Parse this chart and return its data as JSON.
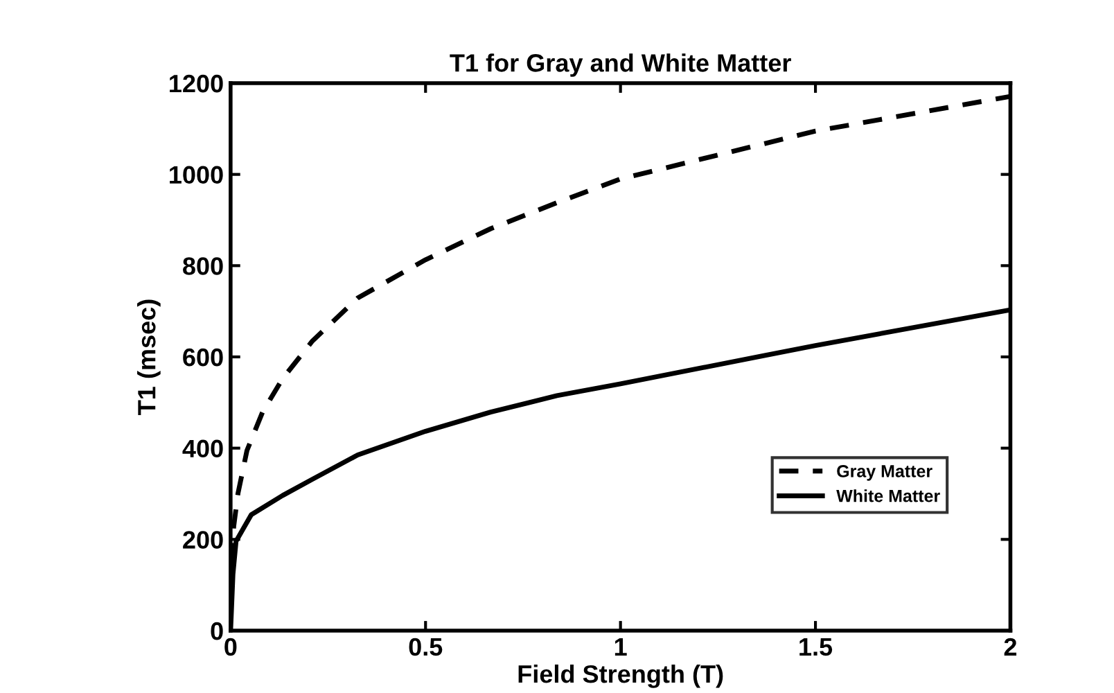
{
  "chart_data": {
    "type": "line",
    "title": "T1 for Gray and White Matter",
    "xlabel": "Field Strength (T)",
    "ylabel": "T1 (msec)",
    "xlim": [
      0,
      2
    ],
    "ylim": [
      0,
      1200
    ],
    "xticks": [
      0,
      0.5,
      1,
      1.5,
      2
    ],
    "yticks": [
      0,
      200,
      400,
      600,
      800,
      1000,
      1200
    ],
    "grid": false,
    "legend": "bottom right",
    "series": [
      {
        "name": "Gray Matter",
        "color": "#000000",
        "line_style": "dashed",
        "x": [
          0.004,
          0.008,
          0.019,
          0.042,
          0.082,
          0.133,
          0.21,
          0.326,
          0.5,
          0.667,
          0.837,
          1.0,
          1.5,
          2.0
        ],
        "values": [
          150,
          228,
          301,
          395,
          479,
          552,
          635,
          729,
          813,
          881,
          938,
          990,
          1095,
          1171
        ]
      },
      {
        "name": "White Matter",
        "color": "#000000",
        "line_style": "solid",
        "x": [
          0,
          0.002,
          0.006,
          0.014,
          0.053,
          0.133,
          0.21,
          0.326,
          0.5,
          0.667,
          0.837,
          1.0,
          1.5,
          2.0
        ],
        "values": [
          0,
          40,
          123,
          196,
          254,
          296,
          332,
          385,
          437,
          479,
          515,
          541,
          625,
          703
        ]
      }
    ]
  }
}
